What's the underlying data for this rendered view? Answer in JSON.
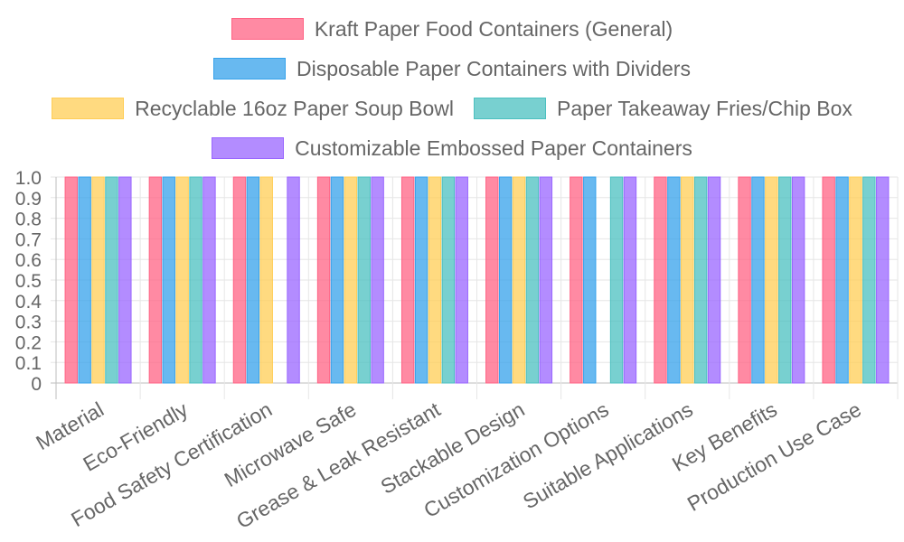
{
  "chart_data": {
    "type": "bar",
    "categories": [
      "Material",
      "Eco-Friendly",
      "Food Safety Certification",
      "Microwave Safe",
      "Grease & Leak Resistant",
      "Stackable Design",
      "Customization Options",
      "Suitable Applications",
      "Key Benefits",
      "Production Use Case"
    ],
    "series": [
      {
        "name": "Kraft Paper Food Containers (General)",
        "color": "#ff6384",
        "values": [
          1,
          1,
          1,
          1,
          1,
          1,
          1,
          1,
          1,
          1
        ]
      },
      {
        "name": "Disposable Paper Containers with Dividers",
        "color": "#36a2eb",
        "values": [
          1,
          1,
          1,
          1,
          1,
          1,
          1,
          1,
          1,
          1
        ]
      },
      {
        "name": "Recyclable 16oz Paper Soup Bowl",
        "color": "#ffcd56",
        "values": [
          1,
          1,
          1,
          1,
          1,
          1,
          0,
          1,
          1,
          1
        ]
      },
      {
        "name": "Paper Takeaway Fries/Chip Box",
        "color": "#4bc0c0",
        "values": [
          1,
          1,
          0,
          1,
          1,
          1,
          1,
          1,
          1,
          1
        ]
      },
      {
        "name": "Customizable Embossed Paper Containers",
        "color": "#9966ff",
        "values": [
          1,
          1,
          1,
          1,
          1,
          1,
          1,
          1,
          1,
          1
        ]
      }
    ],
    "yticks": [
      "0",
      "0.1",
      "0.2",
      "0.3",
      "0.4",
      "0.5",
      "0.6",
      "0.7",
      "0.8",
      "0.9",
      "1.0"
    ],
    "ylim": [
      0,
      1
    ],
    "grid": true,
    "legend_position": "top"
  }
}
